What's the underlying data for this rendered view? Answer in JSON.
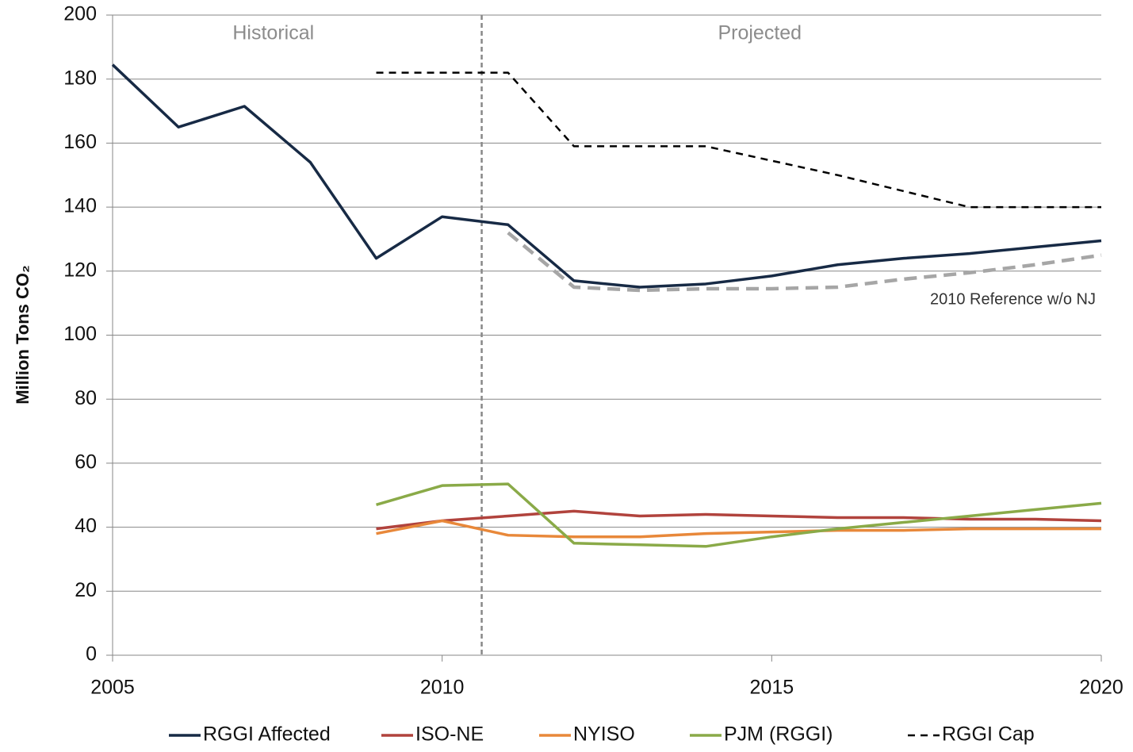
{
  "chart_data": {
    "type": "line",
    "y_label": "Million Tons CO₂",
    "x": [
      2005,
      2006,
      2007,
      2008,
      2009,
      2010,
      2011,
      2012,
      2013,
      2014,
      2015,
      2016,
      2017,
      2018,
      2019,
      2020
    ],
    "xlim": [
      2005,
      2020
    ],
    "xticks": [
      2005,
      2010,
      2015,
      2020
    ],
    "ylim": [
      0,
      200
    ],
    "yticks": [
      0,
      20,
      40,
      60,
      80,
      100,
      120,
      140,
      160,
      180,
      200
    ],
    "grid": true,
    "legend": "bottom",
    "divider": 2010.6,
    "annotations": [
      "Historical",
      "Projected"
    ],
    "series": [
      {
        "name": "RGGI Affected",
        "color": "#172a45",
        "dash": false,
        "values": [
          184.5,
          165,
          171.5,
          154,
          124,
          137,
          134.5,
          117,
          115,
          116,
          118.5,
          122,
          124,
          125.5,
          127.5,
          129.5
        ]
      },
      {
        "name": "ISO-NE",
        "color": "#b1433d",
        "dash": false,
        "values": [
          null,
          null,
          null,
          null,
          39.5,
          42,
          43.5,
          45,
          43.5,
          44,
          43.5,
          43,
          43,
          42.5,
          42.5,
          42
        ]
      },
      {
        "name": "NYISO",
        "color": "#e8883a",
        "dash": false,
        "values": [
          null,
          null,
          null,
          null,
          38,
          42,
          37.5,
          37,
          37,
          38,
          38.5,
          39,
          39,
          39.5,
          39.5,
          39.5
        ]
      },
      {
        "name": "PJM (RGGI)",
        "color": "#8aaa48",
        "dash": false,
        "values": [
          null,
          null,
          null,
          null,
          47,
          53,
          53.5,
          35,
          34.5,
          34,
          37,
          39.5,
          41.5,
          43.5,
          45.5,
          47.5
        ]
      },
      {
        "name": "RGGI Cap",
        "color": "#000000",
        "dash": true,
        "values": [
          null,
          null,
          null,
          null,
          182,
          182,
          182,
          159,
          159,
          159,
          154.5,
          150,
          145,
          140,
          140,
          140
        ]
      },
      {
        "name": "2010 Reference w/o NJ",
        "color": "#a6a6a6",
        "dash": true,
        "in_legend": false,
        "values": [
          null,
          null,
          null,
          null,
          null,
          null,
          132,
          115,
          114,
          114.5,
          114.5,
          115,
          117.5,
          119.5,
          122,
          125
        ]
      }
    ]
  }
}
